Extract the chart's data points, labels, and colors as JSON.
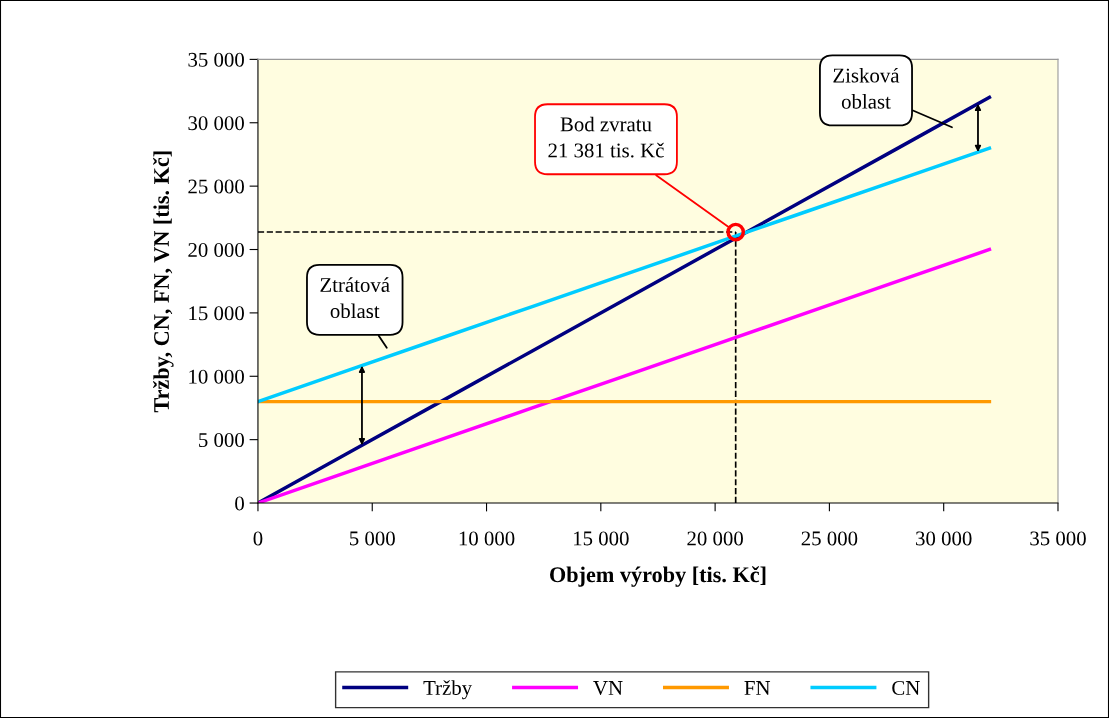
{
  "chart_data": {
    "type": "line",
    "xlabel": "Objem výroby [tis. Kč]",
    "ylabel": "Tržby, CN, FN, VN [tis. Kč]",
    "x": [
      0,
      4000,
      8000,
      12000,
      16000,
      20000,
      24000,
      28000,
      32000
    ],
    "series": [
      {
        "name": "Tržby",
        "color": "#000080",
        "values": [
          0,
          4000,
          8000,
          12000,
          16000,
          20000,
          24000,
          28000,
          32000
        ]
      },
      {
        "name": "VN",
        "color": "#ff00ff",
        "values": [
          0,
          2500,
          5000,
          7500,
          10000,
          12500,
          15000,
          17500,
          20000
        ]
      },
      {
        "name": "FN",
        "color": "#ff9900",
        "values": [
          8000,
          8000,
          8000,
          8000,
          8000,
          8000,
          8000,
          8000,
          8000
        ]
      },
      {
        "name": "CN",
        "color": "#00ccff",
        "values": [
          8000,
          10500,
          13000,
          15500,
          18000,
          20500,
          23000,
          25500,
          28000
        ]
      }
    ],
    "xlim": [
      0,
      35000
    ],
    "ylim": [
      0,
      35000
    ],
    "xticks": [
      0,
      {
        "value": 5000,
        "label": "5 000"
      },
      {
        "value": 10000,
        "label": "10 000"
      },
      {
        "value": 15000,
        "label": "15 000"
      },
      {
        "value": 20000,
        "label": "20 000"
      },
      {
        "value": 25000,
        "label": "25 000"
      },
      {
        "value": 30000,
        "label": "30 000"
      },
      {
        "value": 35000,
        "label": "35 000"
      }
    ],
    "yticks": [
      0,
      {
        "value": 5000,
        "label": "5 000"
      },
      {
        "value": 10000,
        "label": "10 000"
      },
      {
        "value": 15000,
        "label": "15 000"
      },
      {
        "value": 20000,
        "label": "20 000"
      },
      {
        "value": 25000,
        "label": "25 000"
      },
      {
        "value": 30000,
        "label": "30 000"
      },
      {
        "value": 35000,
        "label": "35 000"
      }
    ],
    "ref_lines": [
      {
        "axis": "x",
        "value": 20900,
        "color": "#000000",
        "line_style": "dashed"
      },
      {
        "axis": "y",
        "value": 21381,
        "color": "#000000",
        "line_style": "dashed"
      }
    ],
    "annotations": [
      {
        "text": "Bod zvratu\n21 381 tis. Kč",
        "x": 20900,
        "y": 21381
      },
      "Ztrátová\noblast",
      "Zisková\noblast"
    ],
    "grid": false,
    "legend": "bottom",
    "marker": "none",
    "line_style": "solid"
  }
}
